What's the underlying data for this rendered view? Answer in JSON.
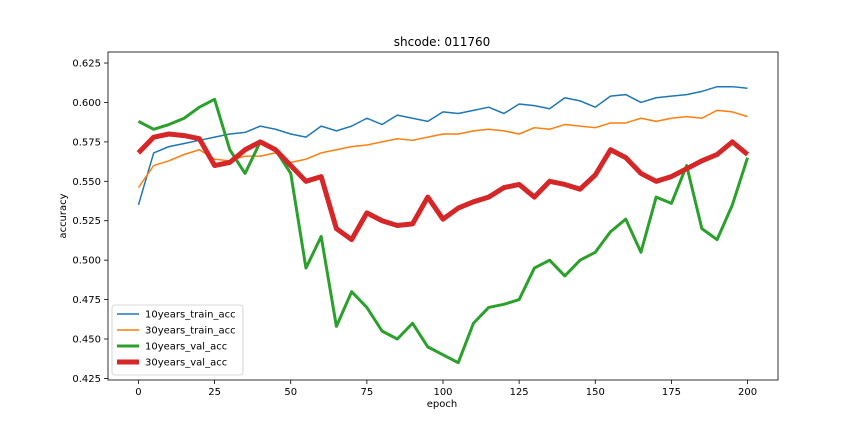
{
  "chart_data": {
    "type": "line",
    "title": "shcode: 011760",
    "xlabel": "epoch",
    "ylabel": "accuracy",
    "xlim": [
      -10,
      210
    ],
    "ylim": [
      0.424,
      0.632
    ],
    "xticks": [
      0,
      25,
      50,
      75,
      100,
      125,
      150,
      175,
      200
    ],
    "yticks": [
      0.425,
      0.45,
      0.475,
      0.5,
      0.525,
      0.55,
      0.575,
      0.6,
      0.625
    ],
    "grid": false,
    "legend_position": "lower-left",
    "series": [
      {
        "name": "10years_train_acc",
        "color": "#1f77b4",
        "linewidth": 1.5,
        "x_step": 5,
        "values": [
          0.535,
          0.568,
          0.572,
          0.574,
          0.576,
          0.578,
          0.58,
          0.581,
          0.585,
          0.583,
          0.58,
          0.578,
          0.585,
          0.582,
          0.585,
          0.59,
          0.586,
          0.592,
          0.59,
          0.588,
          0.594,
          0.593,
          0.595,
          0.597,
          0.593,
          0.599,
          0.598,
          0.596,
          0.603,
          0.601,
          0.597,
          0.604,
          0.605,
          0.6,
          0.603,
          0.604,
          0.605,
          0.607,
          0.61,
          0.61,
          0.609
        ]
      },
      {
        "name": "30years_train_acc",
        "color": "#ff7f0e",
        "linewidth": 1.5,
        "x_step": 5,
        "values": [
          0.546,
          0.56,
          0.563,
          0.567,
          0.57,
          0.564,
          0.563,
          0.566,
          0.566,
          0.568,
          0.562,
          0.564,
          0.568,
          0.57,
          0.572,
          0.573,
          0.575,
          0.577,
          0.576,
          0.578,
          0.58,
          0.58,
          0.582,
          0.583,
          0.582,
          0.58,
          0.584,
          0.583,
          0.586,
          0.585,
          0.584,
          0.587,
          0.587,
          0.59,
          0.588,
          0.59,
          0.591,
          0.59,
          0.595,
          0.594,
          0.591
        ]
      },
      {
        "name": "10years_val_acc",
        "color": "#2ca02c",
        "linewidth": 3,
        "x_step": 5,
        "values": [
          0.588,
          0.583,
          0.586,
          0.59,
          0.597,
          0.602,
          0.57,
          0.555,
          0.575,
          0.57,
          0.555,
          0.495,
          0.515,
          0.458,
          0.48,
          0.47,
          0.455,
          0.45,
          0.46,
          0.445,
          0.44,
          0.435,
          0.46,
          0.47,
          0.472,
          0.475,
          0.495,
          0.5,
          0.49,
          0.5,
          0.505,
          0.518,
          0.526,
          0.505,
          0.54,
          0.536,
          0.56,
          0.52,
          0.513,
          0.535,
          0.565
        ]
      },
      {
        "name": "30years_val_acc",
        "color": "#d62728",
        "linewidth": 5,
        "x_step": 5,
        "values": [
          0.568,
          0.578,
          0.58,
          0.579,
          0.577,
          0.56,
          0.562,
          0.57,
          0.575,
          0.57,
          0.56,
          0.55,
          0.553,
          0.52,
          0.513,
          0.53,
          0.525,
          0.522,
          0.523,
          0.54,
          0.526,
          0.533,
          0.537,
          0.54,
          0.546,
          0.548,
          0.54,
          0.55,
          0.548,
          0.545,
          0.554,
          0.57,
          0.565,
          0.555,
          0.55,
          0.553,
          0.558,
          0.563,
          0.567,
          0.575,
          0.567
        ]
      }
    ]
  }
}
